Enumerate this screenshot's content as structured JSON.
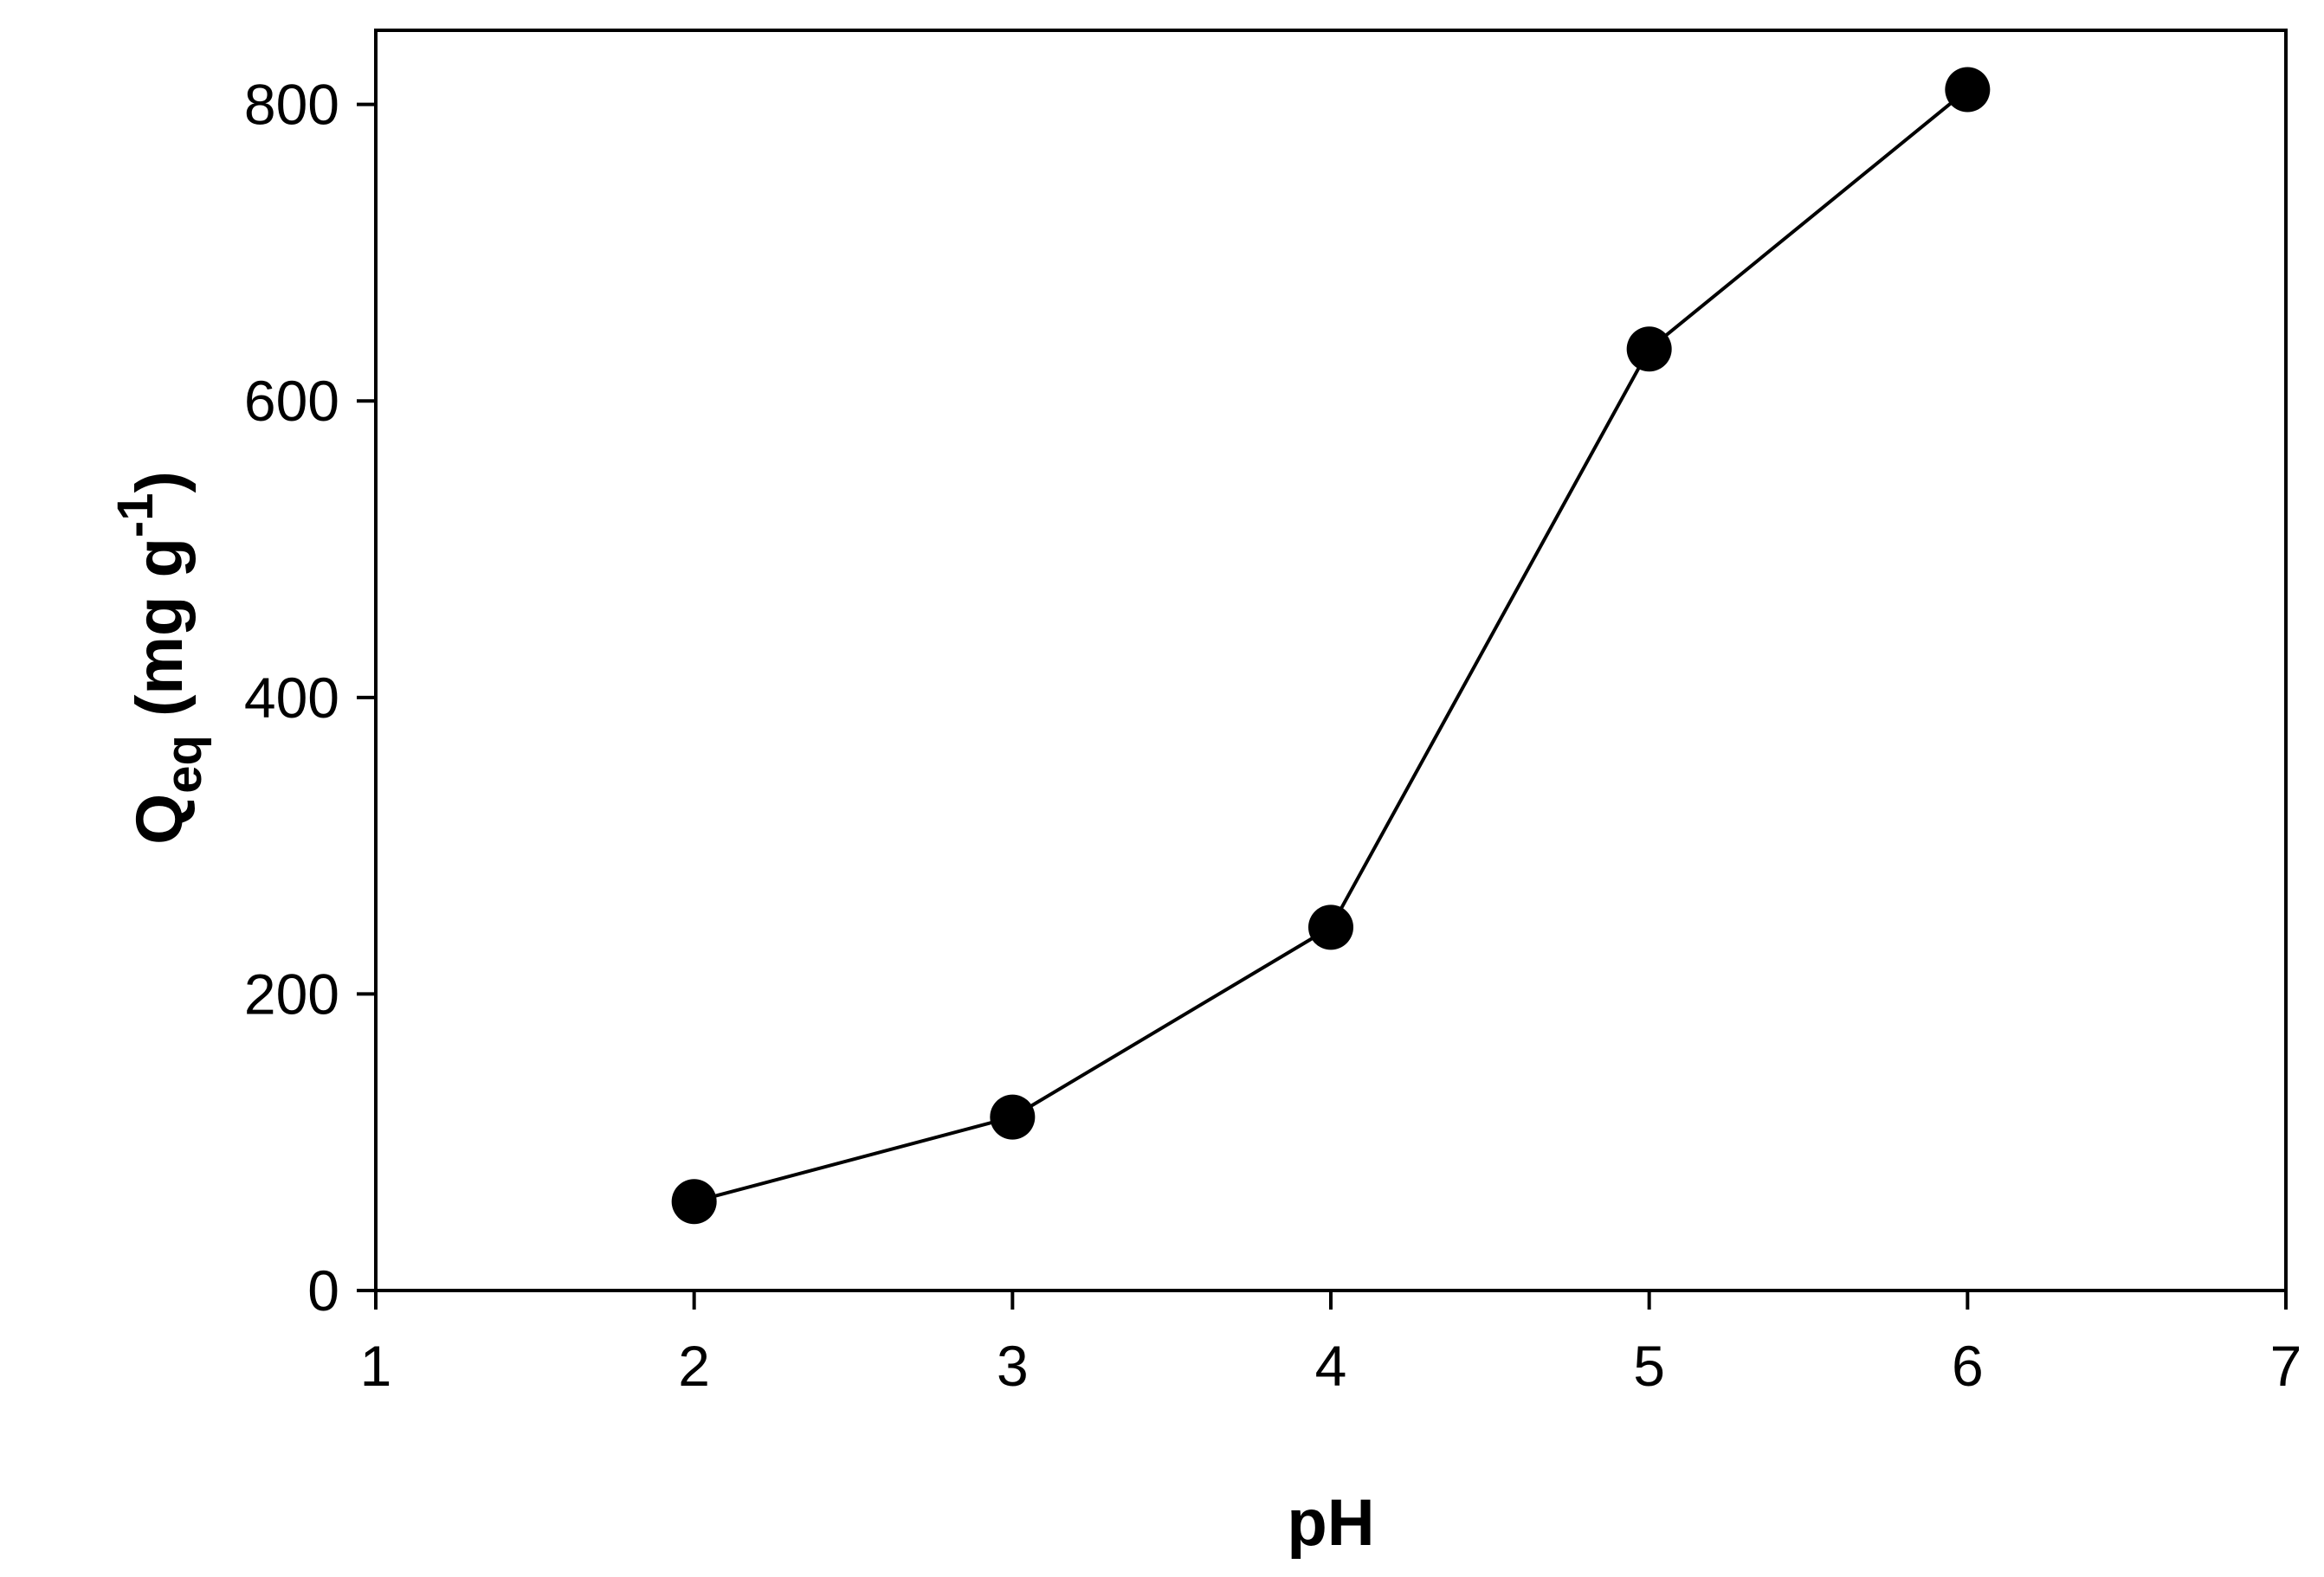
{
  "chart_data": {
    "type": "line",
    "title": "",
    "xlabel": "pH",
    "ylabel": {
      "main": "Q",
      "subscript": "eq",
      "unit_open": " (mg g",
      "superscript": "-1",
      "unit_close": ")"
    },
    "xlim": [
      1,
      7
    ],
    "ylim": [
      0,
      850
    ],
    "xticks": [
      1,
      2,
      3,
      4,
      5,
      6,
      7
    ],
    "yticks": [
      0,
      200,
      400,
      600,
      800
    ],
    "grid": false,
    "legend": "none",
    "marker": "filled-circle",
    "colors": {
      "line": "#000000",
      "marker": "#000000",
      "axes": "#000000"
    },
    "series": [
      {
        "x": [
          2,
          3,
          4,
          5,
          6
        ],
        "y": [
          60,
          117,
          245,
          635,
          810
        ]
      }
    ]
  }
}
